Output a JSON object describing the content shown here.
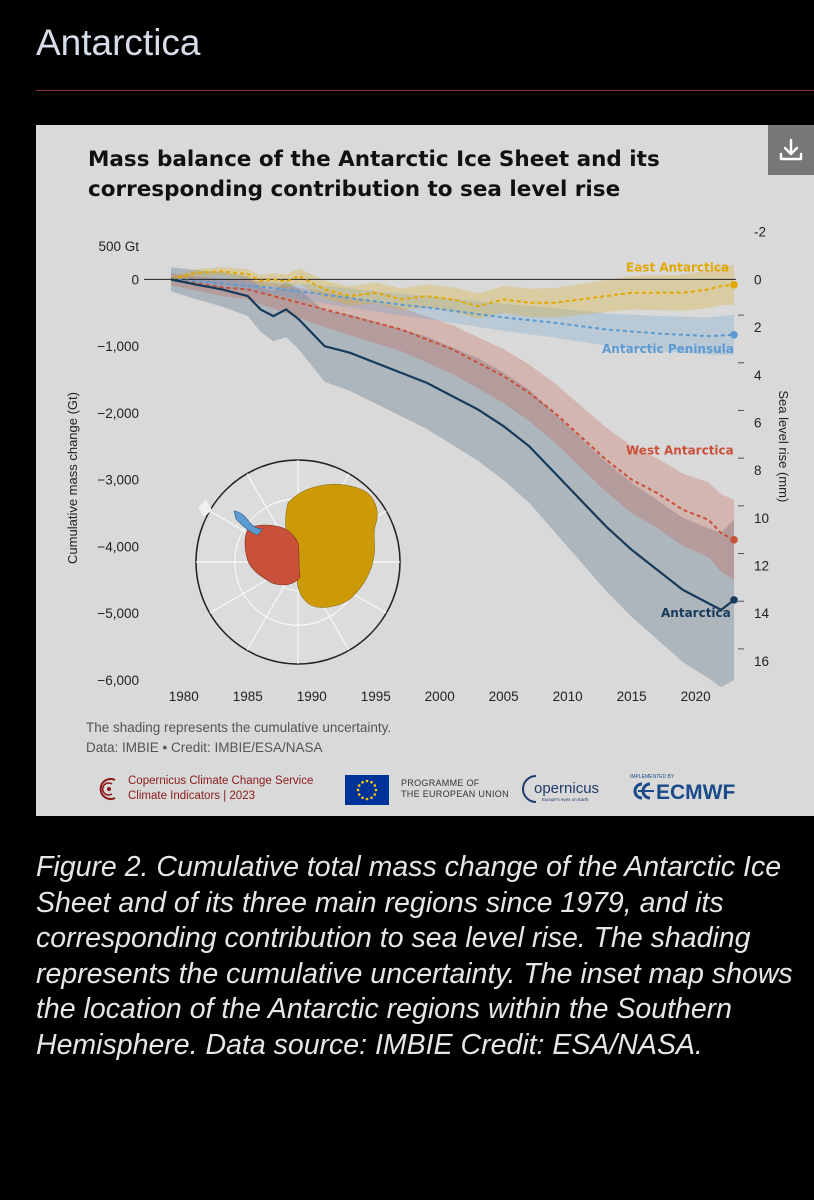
{
  "page": {
    "heading": "Antarctica"
  },
  "figure": {
    "title_line1": "Mass balance of the Antarctic Ice Sheet and its",
    "title_line2": "corresponding contribution to sea level rise",
    "note": "The shading represents the cumulative uncertainty.",
    "source": "Data: IMBIE • Credit: IMBIE/ESA/NASA",
    "download_icon": "download-icon"
  },
  "logos": {
    "c3s_line1": "Copernicus Climate Change Service",
    "c3s_line2": "Climate Indicators | 2023",
    "eu_line1": "PROGRAMME OF",
    "eu_line2": "THE EUROPEAN UNION",
    "copernicus": "opernicus",
    "copernicus_tag": "Europe's eyes on Earth",
    "ecmwf_small": "IMPLEMENTED BY",
    "ecmwf": "ECMWF"
  },
  "chart_data": {
    "type": "line",
    "title": "Mass balance of the Antarctic Ice Sheet and its corresponding contribution to sea level rise",
    "xlabel": "",
    "ylabel": "Cumulative mass change (Gt)",
    "y2label": "Sea level rise (mm)",
    "xlim": [
      1979,
      2023
    ],
    "ylim": [
      -6000,
      500
    ],
    "y2lim": [
      16,
      -2
    ],
    "x_ticks": [
      "1980",
      "1985",
      "1990",
      "1995",
      "2000",
      "2005",
      "2010",
      "2015",
      "2020"
    ],
    "y_ticks": [
      "500 Gt",
      "0",
      "−1,000",
      "−2,000",
      "−3,000",
      "−4,000",
      "−5,000",
      "−6,000"
    ],
    "y_tick_values": [
      500,
      0,
      -1000,
      -2000,
      -3000,
      -4000,
      -5000,
      -6000
    ],
    "y2_ticks": [
      "-2",
      "0",
      "2",
      "4",
      "6",
      "8",
      "10",
      "12",
      "14",
      "16"
    ],
    "y2_tick_values": [
      -2,
      0,
      2,
      4,
      6,
      8,
      10,
      12,
      14,
      16
    ],
    "x": [
      1979,
      1981,
      1983,
      1985,
      1986,
      1987,
      1988,
      1989,
      1990,
      1991,
      1993,
      1995,
      1997,
      1999,
      2001,
      2003,
      2005,
      2007,
      2009,
      2011,
      2013,
      2015,
      2017,
      2019,
      2021,
      2022,
      2023
    ],
    "series": [
      {
        "name": "East Antarctica",
        "color": "#e0a800",
        "dashed": true,
        "values": [
          0,
          100,
          120,
          80,
          -20,
          0,
          -30,
          50,
          -50,
          -150,
          -250,
          -200,
          -300,
          -250,
          -300,
          -400,
          -300,
          -350,
          -350,
          -300,
          -250,
          -200,
          -200,
          -200,
          -150,
          -100,
          -80
        ],
        "band": 300
      },
      {
        "name": "Antarctic Peninsula",
        "color": "#5b9bd1",
        "dashed": true,
        "values": [
          0,
          -30,
          -60,
          -100,
          -110,
          -130,
          -160,
          -180,
          -200,
          -230,
          -280,
          -330,
          -380,
          -420,
          -470,
          -520,
          -570,
          -610,
          -650,
          -700,
          -750,
          -780,
          -810,
          -830,
          -850,
          -840,
          -830
        ],
        "band": 300
      },
      {
        "name": "West Antarctica",
        "color": "#c9513a",
        "dashed": true,
        "values": [
          0,
          -60,
          -120,
          -150,
          -200,
          -250,
          -300,
          -350,
          -400,
          -450,
          -550,
          -650,
          -750,
          -900,
          -1050,
          -1250,
          -1450,
          -1700,
          -2000,
          -2350,
          -2700,
          -3000,
          -3200,
          -3450,
          -3600,
          -3800,
          -3900
        ],
        "band": 600
      },
      {
        "name": "Antarctica",
        "color": "#173a5a",
        "dashed": false,
        "values": [
          0,
          -80,
          -150,
          -250,
          -450,
          -550,
          -450,
          -600,
          -800,
          -1000,
          -1100,
          -1250,
          -1400,
          -1550,
          -1750,
          -1950,
          -2200,
          -2500,
          -2900,
          -3300,
          -3700,
          -4050,
          -4350,
          -4650,
          -4850,
          -4950,
          -4800
        ],
        "band": 1200
      }
    ],
    "legend": "inline labels at line ends",
    "grid": false
  },
  "caption": "Figure 2. Cumulative total mass change of the Antarctic Ice Sheet and of its three main regions since 1979, and its corresponding contribution to sea level rise. The shading represents the cumulative uncertainty. The inset map shows the location of the Antarctic regions within the Southern Hemisphere. Data source: IMBIE Credit: ESA/NASA."
}
